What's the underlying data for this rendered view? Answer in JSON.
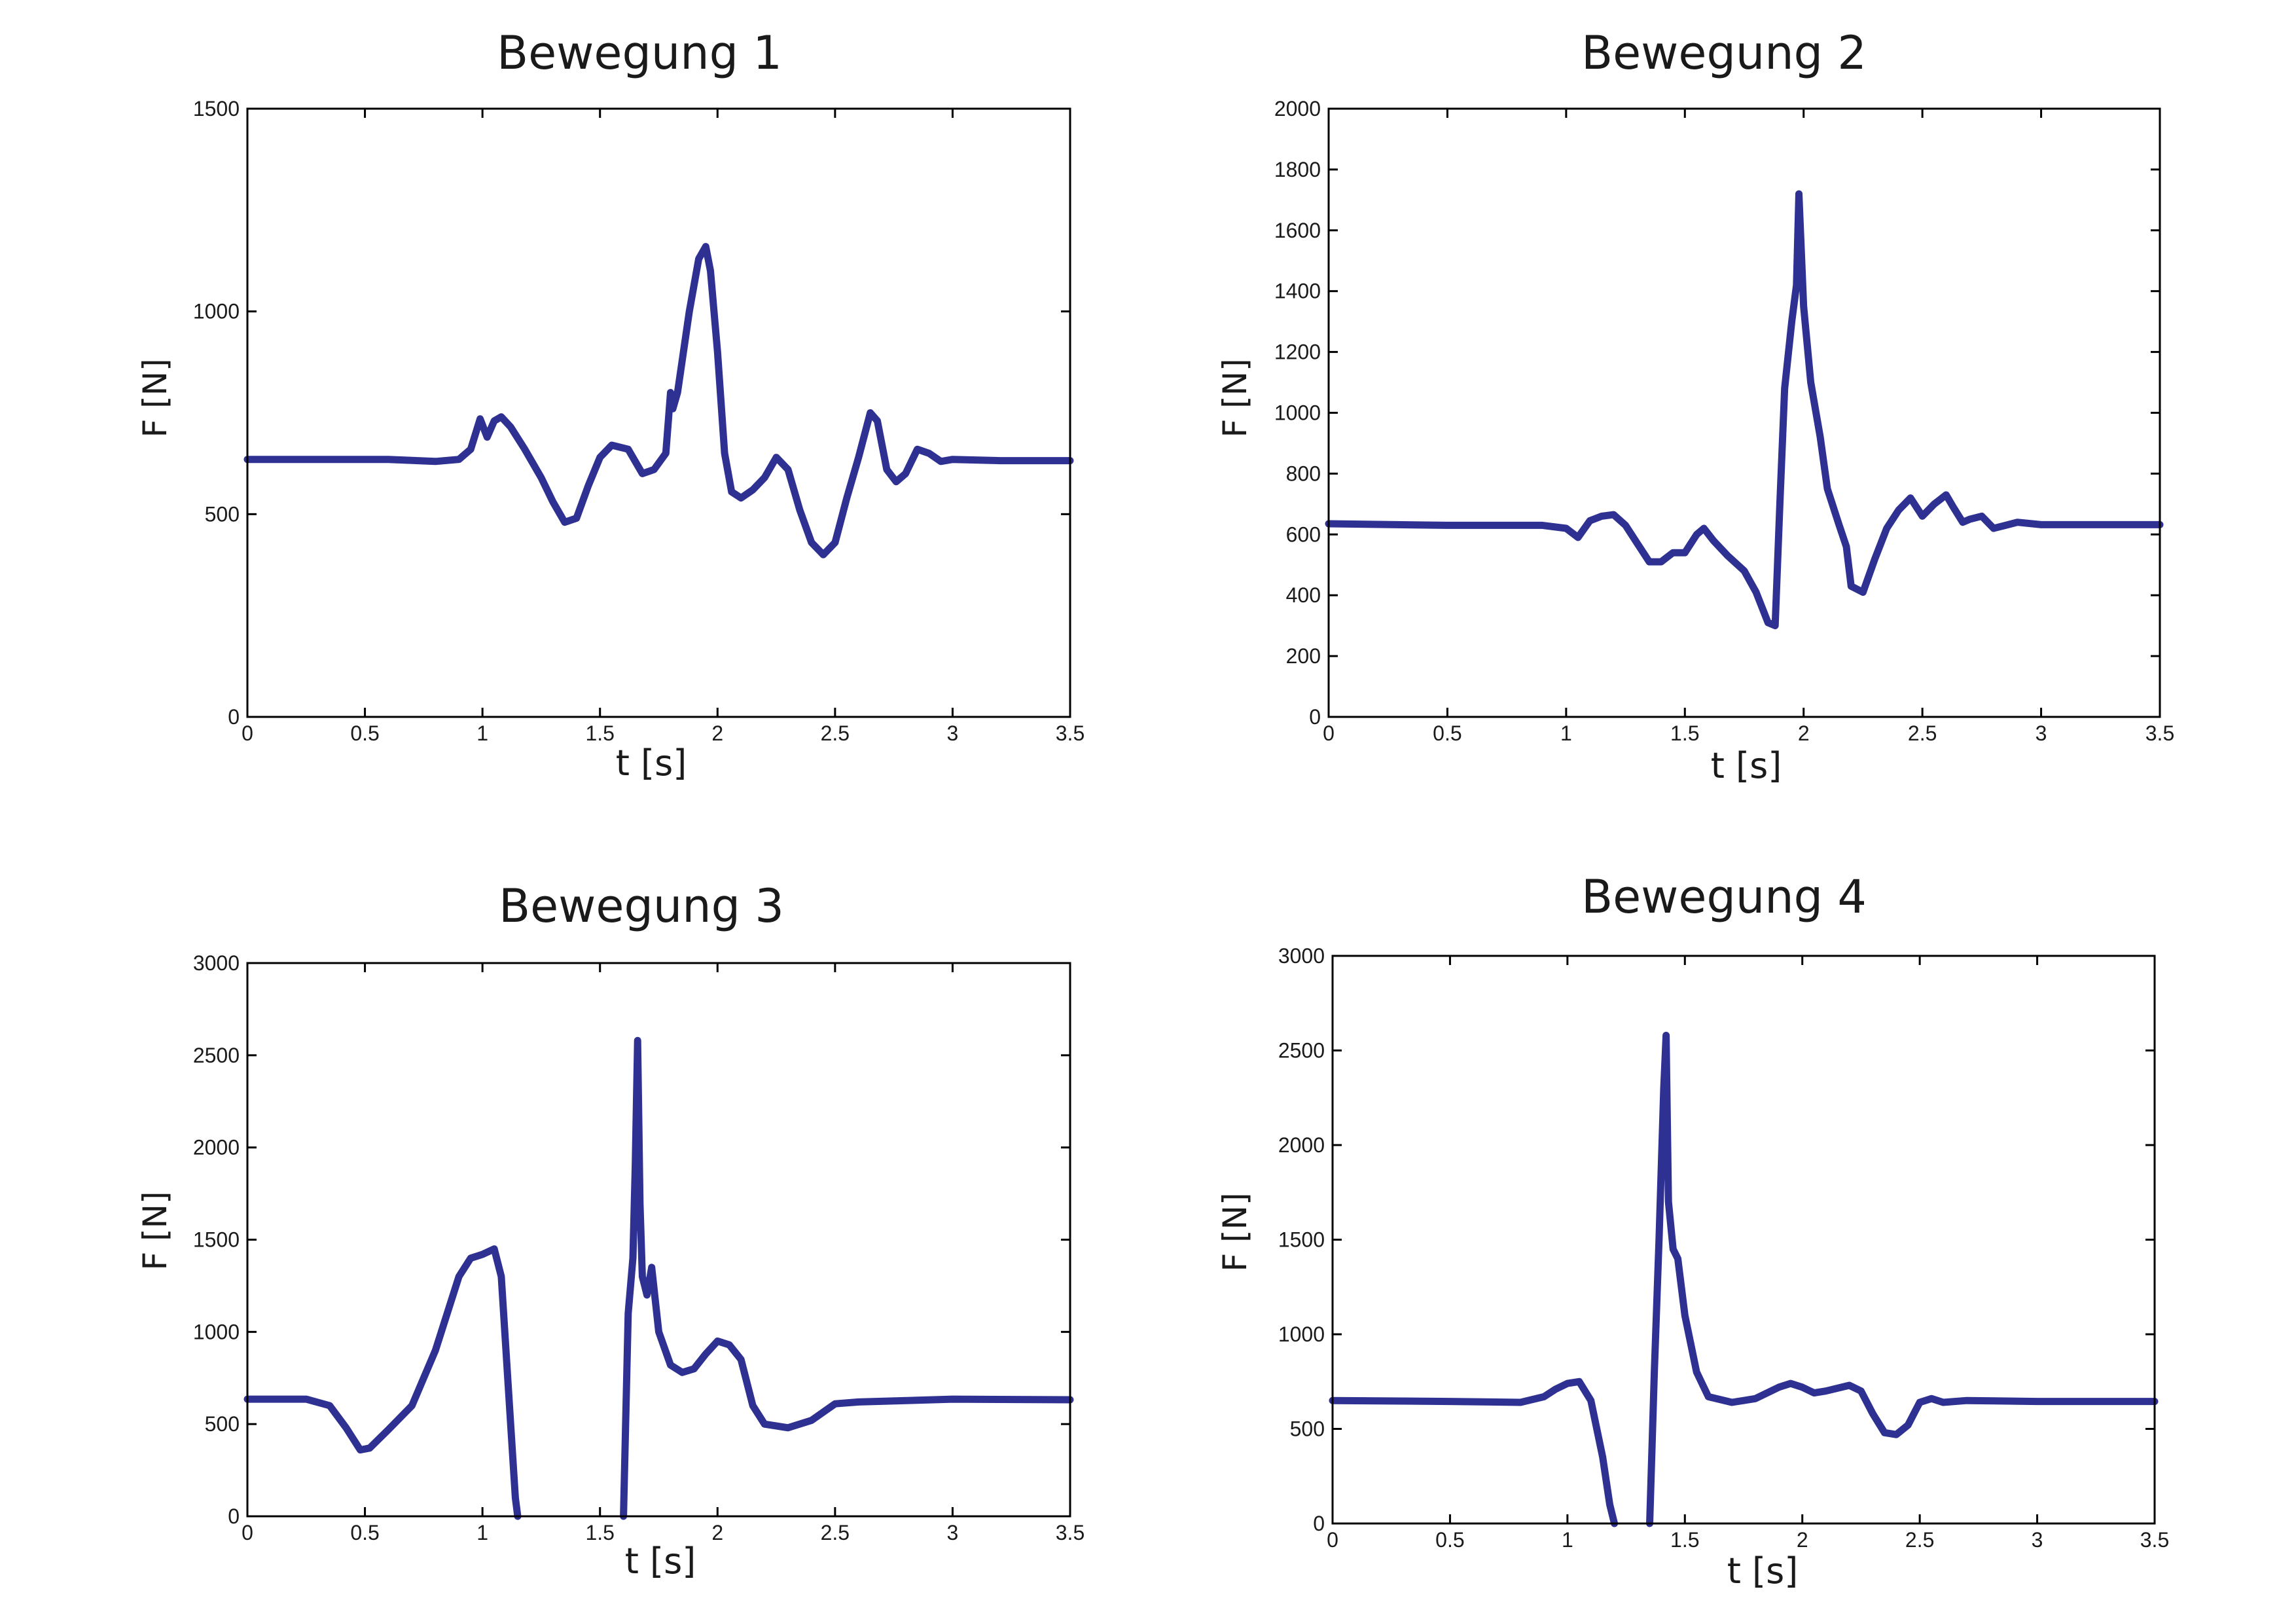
{
  "colors": {
    "line": "#2e3192",
    "axes": "#000000",
    "background": "#ffffff"
  },
  "chart_data": [
    {
      "type": "line",
      "title": "Bewegung 1",
      "xlabel": "t [s]",
      "ylabel": "F [N]",
      "xlim": [
        0,
        3.5
      ],
      "ylim": [
        0,
        1500
      ],
      "xticks": [
        "0",
        "0.5",
        "1",
        "1.5",
        "2",
        "2.5",
        "3",
        "3.5"
      ],
      "yticks": [
        "0",
        "500",
        "1000",
        "1500"
      ],
      "grid": false,
      "series": [
        {
          "x": [
            0,
            0.3,
            0.6,
            0.8,
            0.9,
            0.95,
            0.99,
            1.02,
            1.05,
            1.08,
            1.12,
            1.18,
            1.25,
            1.3,
            1.35,
            1.4,
            1.45,
            1.5,
            1.55,
            1.62,
            1.68,
            1.73,
            1.78,
            1.8,
            1.81,
            1.83,
            1.85,
            1.88,
            1.92,
            1.95,
            1.97,
            2.0,
            2.03,
            2.06,
            2.1,
            2.15,
            2.2,
            2.25,
            2.3,
            2.35,
            2.4,
            2.45,
            2.5,
            2.55,
            2.6,
            2.65,
            2.68,
            2.72,
            2.76,
            2.8,
            2.85,
            2.9,
            2.95,
            3.0,
            3.2,
            3.5
          ],
          "y": [
            635,
            635,
            635,
            630,
            635,
            660,
            735,
            690,
            730,
            740,
            715,
            660,
            590,
            530,
            480,
            490,
            570,
            640,
            670,
            660,
            600,
            610,
            650,
            800,
            760,
            800,
            880,
            1000,
            1130,
            1160,
            1100,
            900,
            650,
            555,
            540,
            560,
            590,
            640,
            610,
            510,
            430,
            400,
            430,
            540,
            640,
            750,
            730,
            610,
            580,
            600,
            660,
            650,
            630,
            635,
            632,
            632
          ]
        }
      ]
    },
    {
      "type": "line",
      "title": "Bewegung 2",
      "xlabel": "t [s]",
      "ylabel": "F [N]",
      "xlim": [
        0,
        3.5
      ],
      "ylim": [
        0,
        2000
      ],
      "xticks": [
        "0",
        "0.5",
        "1",
        "1.5",
        "2",
        "2.5",
        "3",
        "3.5"
      ],
      "yticks": [
        "0",
        "200",
        "400",
        "600",
        "800",
        "1000",
        "1200",
        "1400",
        "1600",
        "1800",
        "2000"
      ],
      "grid": false,
      "series": [
        {
          "x": [
            0,
            0.5,
            0.9,
            1.0,
            1.05,
            1.1,
            1.15,
            1.2,
            1.25,
            1.3,
            1.35,
            1.4,
            1.45,
            1.5,
            1.55,
            1.58,
            1.62,
            1.68,
            1.75,
            1.8,
            1.85,
            1.88,
            1.9,
            1.92,
            1.95,
            1.97,
            1.98,
            2.0,
            2.03,
            2.07,
            2.1,
            2.15,
            2.18,
            2.2,
            2.25,
            2.3,
            2.35,
            2.4,
            2.45,
            2.5,
            2.55,
            2.6,
            2.63,
            2.67,
            2.7,
            2.75,
            2.8,
            2.85,
            2.9,
            3.0,
            3.5
          ],
          "y": [
            635,
            630,
            630,
            620,
            590,
            645,
            660,
            665,
            630,
            570,
            510,
            510,
            540,
            540,
            600,
            620,
            580,
            530,
            480,
            410,
            310,
            300,
            700,
            1080,
            1300,
            1420,
            1720,
            1350,
            1100,
            920,
            750,
            630,
            560,
            430,
            410,
            520,
            620,
            680,
            720,
            660,
            700,
            730,
            690,
            640,
            650,
            660,
            620,
            630,
            640,
            632,
            632
          ]
        }
      ]
    },
    {
      "type": "line",
      "title": "Bewegung 3",
      "xlabel": "t [s]",
      "ylabel": "F [N]",
      "xlim": [
        0,
        3.5
      ],
      "ylim": [
        0,
        3000
      ],
      "xticks": [
        "0",
        "0.5",
        "1",
        "1.5",
        "2",
        "2.5",
        "3",
        "3.5"
      ],
      "yticks": [
        "0",
        "500",
        "1000",
        "1500",
        "2000",
        "2500",
        "3000"
      ],
      "grid": false,
      "series": [
        {
          "x": [
            0,
            0.25,
            0.35,
            0.42,
            0.48,
            0.52,
            0.6,
            0.7,
            0.8,
            0.9,
            0.95,
            1.0,
            1.05,
            1.08,
            1.12,
            1.14,
            1.15
          ],
          "y": [
            635,
            635,
            600,
            480,
            360,
            370,
            470,
            600,
            900,
            1300,
            1400,
            1420,
            1450,
            1300,
            500,
            100,
            0
          ]
        },
        {
          "x": [
            1.6,
            1.62,
            1.64,
            1.65,
            1.66,
            1.67,
            1.68,
            1.7,
            1.72,
            1.75,
            1.8,
            1.85,
            1.9,
            1.95,
            2.0,
            2.05,
            2.1,
            2.15,
            2.2,
            2.3,
            2.4,
            2.5,
            2.6,
            3.0,
            3.5
          ],
          "y": [
            0,
            1100,
            1400,
            1900,
            2580,
            1700,
            1300,
            1200,
            1350,
            1000,
            820,
            780,
            800,
            880,
            950,
            930,
            850,
            600,
            500,
            480,
            520,
            610,
            620,
            635,
            632
          ]
        }
      ]
    },
    {
      "type": "line",
      "title": "Bewegung 4",
      "xlabel": "t [s]",
      "ylabel": "F [N]",
      "xlim": [
        0,
        3.5
      ],
      "ylim": [
        0,
        3000
      ],
      "xticks": [
        "0",
        "0.5",
        "1",
        "1.5",
        "2",
        "2.5",
        "3",
        "3.5"
      ],
      "yticks": [
        "0",
        "500",
        "1000",
        "1500",
        "2000",
        "2500",
        "3000"
      ],
      "grid": false,
      "series": [
        {
          "x": [
            0,
            0.5,
            0.8,
            0.9,
            0.95,
            1.0,
            1.05,
            1.1,
            1.15,
            1.18,
            1.2
          ],
          "y": [
            650,
            645,
            640,
            670,
            710,
            740,
            750,
            650,
            350,
            100,
            0
          ]
        },
        {
          "x": [
            1.35,
            1.37,
            1.39,
            1.41,
            1.42,
            1.43,
            1.45,
            1.47,
            1.5,
            1.55,
            1.6,
            1.7,
            1.8,
            1.9,
            1.95,
            2.0,
            2.05,
            2.1,
            2.2,
            2.25,
            2.3,
            2.35,
            2.4,
            2.45,
            2.5,
            2.55,
            2.6,
            2.7,
            3.0,
            3.5
          ],
          "y": [
            0,
            800,
            1500,
            2300,
            2580,
            1700,
            1450,
            1400,
            1100,
            800,
            670,
            640,
            660,
            720,
            740,
            720,
            690,
            700,
            730,
            700,
            580,
            480,
            470,
            520,
            640,
            660,
            640,
            650,
            645,
            645
          ]
        }
      ]
    }
  ]
}
